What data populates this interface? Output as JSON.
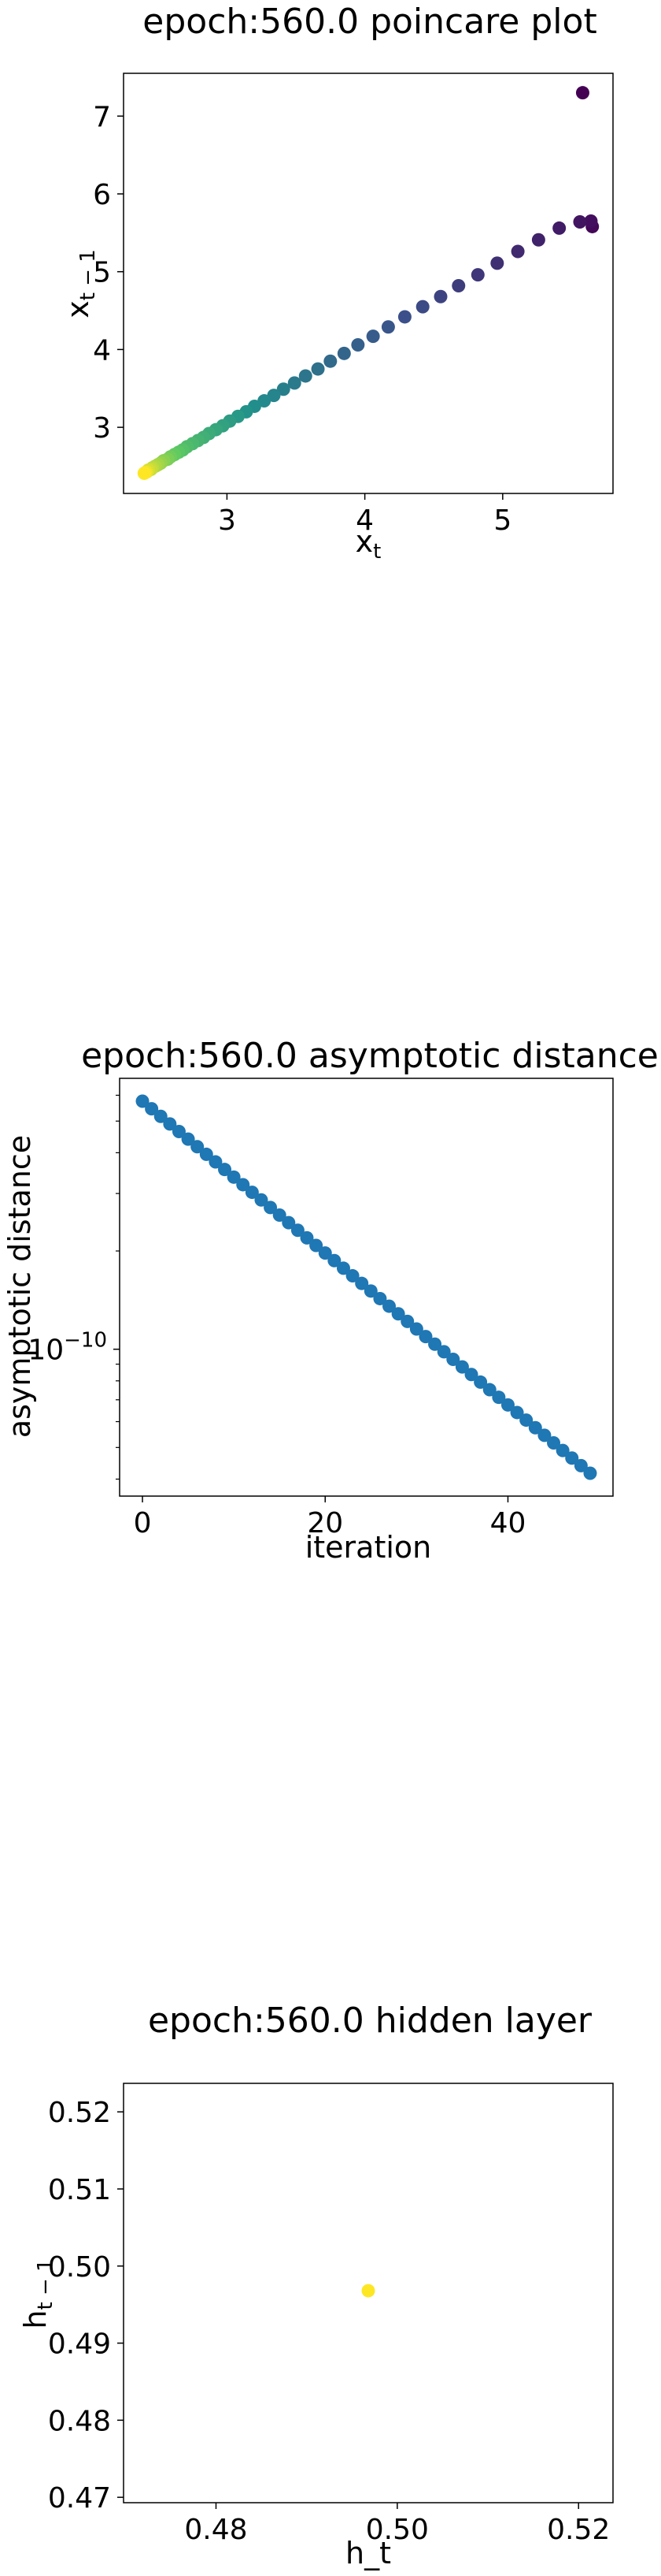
{
  "chart_data": [
    {
      "type": "scatter",
      "title": "epoch:560.0 poincare plot",
      "xlabel": "x",
      "xlabel_sub": "t",
      "ylabel": "x",
      "ylabel_sub": "t − 1",
      "xlim": [
        2.25,
        5.8
      ],
      "ylim": [
        2.15,
        7.55
      ],
      "xticks": [
        3,
        4,
        5
      ],
      "yticks": [
        3,
        4,
        5,
        6,
        7
      ],
      "colormap": "viridis",
      "points": [
        {
          "x": 5.58,
          "y": 7.3
        },
        {
          "x": 5.65,
          "y": 5.58
        },
        {
          "x": 5.64,
          "y": 5.65
        },
        {
          "x": 5.56,
          "y": 5.64
        },
        {
          "x": 5.41,
          "y": 5.56
        },
        {
          "x": 5.26,
          "y": 5.41
        },
        {
          "x": 5.11,
          "y": 5.26
        },
        {
          "x": 4.96,
          "y": 5.11
        },
        {
          "x": 4.82,
          "y": 4.96
        },
        {
          "x": 4.68,
          "y": 4.82
        },
        {
          "x": 4.55,
          "y": 4.68
        },
        {
          "x": 4.42,
          "y": 4.55
        },
        {
          "x": 4.29,
          "y": 4.42
        },
        {
          "x": 4.17,
          "y": 4.29
        },
        {
          "x": 4.06,
          "y": 4.17
        },
        {
          "x": 3.95,
          "y": 4.06
        },
        {
          "x": 3.85,
          "y": 3.95
        },
        {
          "x": 3.75,
          "y": 3.85
        },
        {
          "x": 3.66,
          "y": 3.75
        },
        {
          "x": 3.57,
          "y": 3.66
        },
        {
          "x": 3.49,
          "y": 3.57
        },
        {
          "x": 3.41,
          "y": 3.49
        },
        {
          "x": 3.34,
          "y": 3.41
        },
        {
          "x": 3.27,
          "y": 3.34
        },
        {
          "x": 3.2,
          "y": 3.27
        },
        {
          "x": 3.14,
          "y": 3.2
        },
        {
          "x": 3.08,
          "y": 3.14
        },
        {
          "x": 3.02,
          "y": 3.08
        },
        {
          "x": 2.97,
          "y": 3.02
        },
        {
          "x": 2.92,
          "y": 2.97
        },
        {
          "x": 2.87,
          "y": 2.92
        },
        {
          "x": 2.83,
          "y": 2.87
        },
        {
          "x": 2.79,
          "y": 2.83
        },
        {
          "x": 2.75,
          "y": 2.79
        },
        {
          "x": 2.71,
          "y": 2.75
        },
        {
          "x": 2.68,
          "y": 2.71
        },
        {
          "x": 2.65,
          "y": 2.68
        },
        {
          "x": 2.62,
          "y": 2.65
        },
        {
          "x": 2.59,
          "y": 2.62
        },
        {
          "x": 2.57,
          "y": 2.59
        },
        {
          "x": 2.54,
          "y": 2.57
        },
        {
          "x": 2.52,
          "y": 2.54
        },
        {
          "x": 2.5,
          "y": 2.52
        },
        {
          "x": 2.48,
          "y": 2.5
        },
        {
          "x": 2.46,
          "y": 2.48
        },
        {
          "x": 2.45,
          "y": 2.46
        },
        {
          "x": 2.43,
          "y": 2.45
        },
        {
          "x": 2.42,
          "y": 2.43
        },
        {
          "x": 2.41,
          "y": 2.42
        },
        {
          "x": 2.4,
          "y": 2.41
        }
      ]
    },
    {
      "type": "scatter",
      "title": "epoch:560.0 asymptotic distance",
      "xlabel": "iteration",
      "ylabel": "asymptotic distance",
      "yscale": "log",
      "xlim": [
        -2.5,
        51.5
      ],
      "ylim_log10": [
        -10.45,
        -9.17
      ],
      "xticks": [
        0,
        20,
        40
      ],
      "yticks": [
        {
          "value": -10,
          "base": "10",
          "exp": "−10"
        }
      ],
      "color": "#1f77b4",
      "x": [
        0,
        49
      ],
      "log10_y": [
        -9.24,
        -10.38
      ]
    },
    {
      "type": "scatter",
      "title": "epoch:560.0 hidden layer",
      "xlabel": "h_t",
      "ylabel": "h",
      "ylabel_sub": "t − 1",
      "xlim": [
        0.4698,
        0.5238
      ],
      "ylim": [
        0.4693,
        0.5237
      ],
      "xticks": [
        "0.48",
        "0.50",
        "0.52"
      ],
      "yticks": [
        "0.47",
        "0.48",
        "0.49",
        "0.50",
        "0.51",
        "0.52"
      ],
      "color": "#fde725",
      "points": [
        {
          "x": 0.4968,
          "y": 0.4968
        }
      ]
    }
  ]
}
